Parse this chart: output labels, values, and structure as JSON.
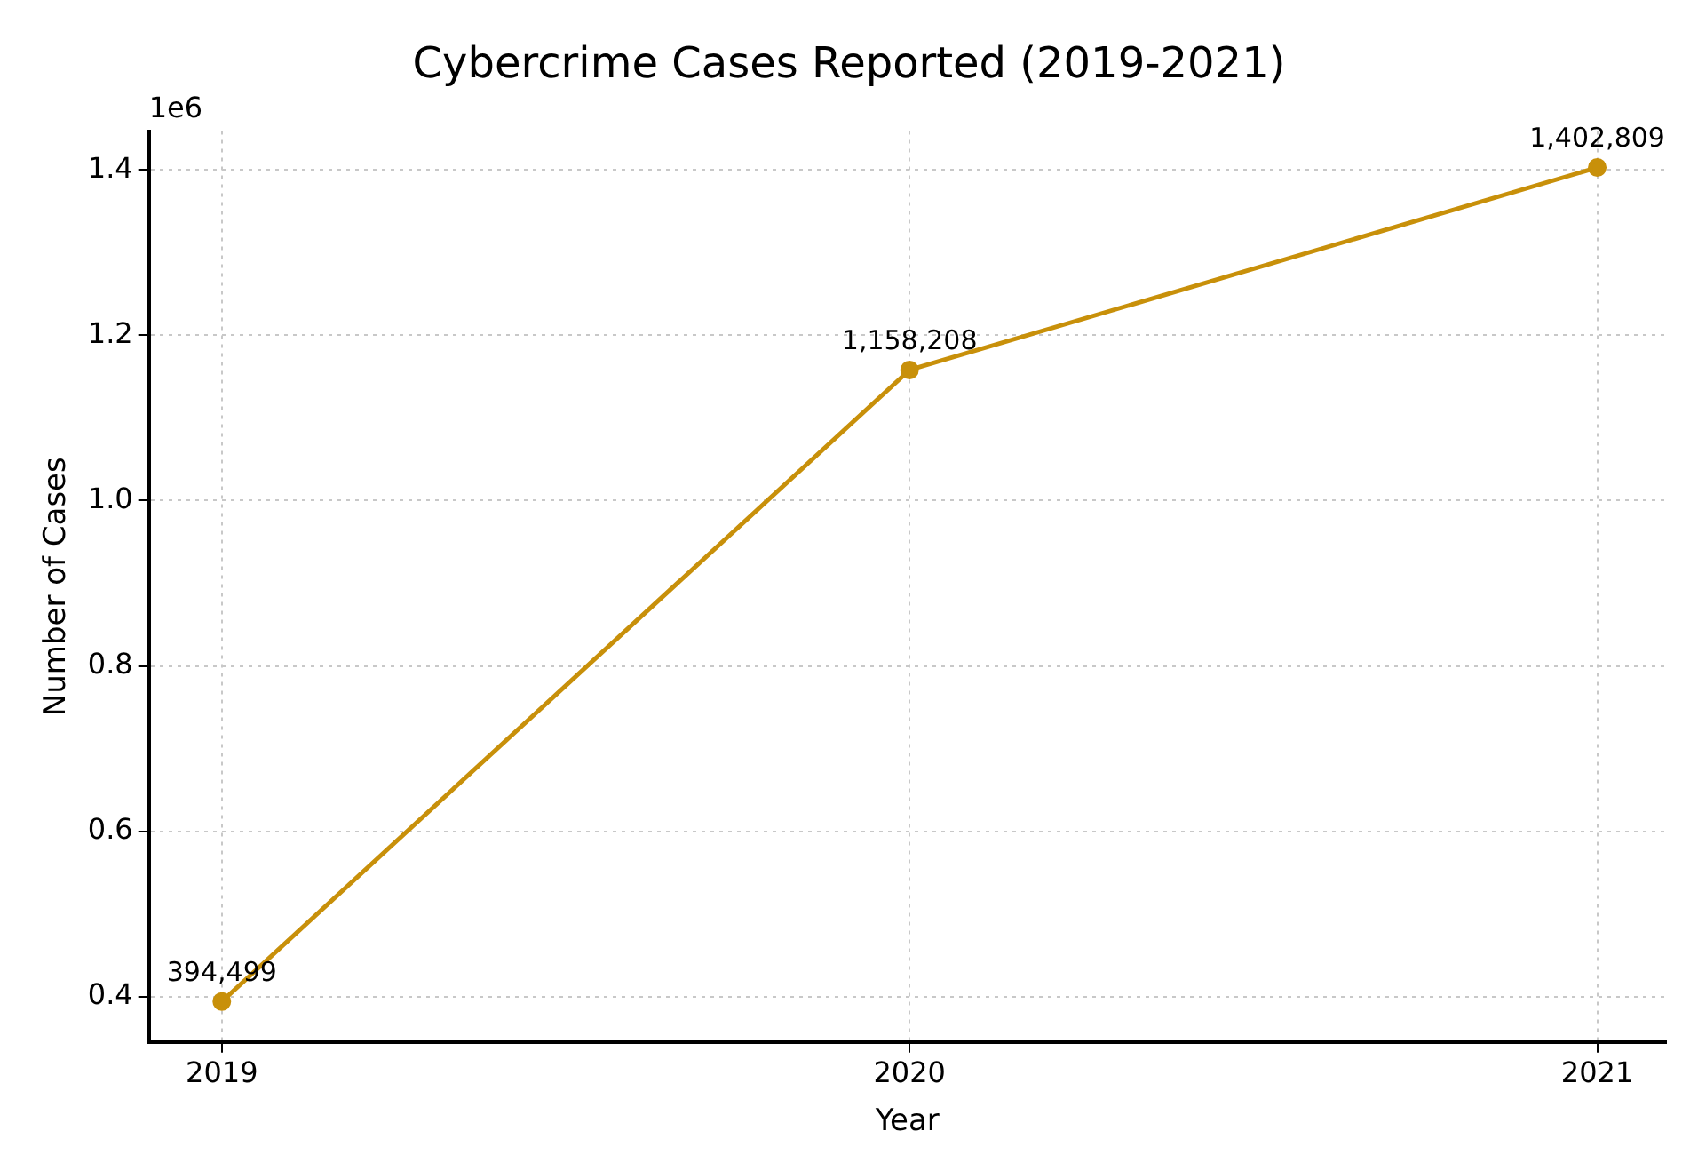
{
  "chart_data": {
    "type": "line",
    "title": "Cybercrime Cases Reported (2019-2021)",
    "xlabel": "Year",
    "ylabel": "Number of Cases",
    "x": [
      2019,
      2020,
      2021
    ],
    "series": [
      {
        "color": "#c8900a",
        "values": [
          0.394,
          1.158,
          1.403
        ]
      }
    ],
    "xlim": [
      2018.894,
      2021.1
    ],
    "xticks": [
      2019,
      2020,
      2021
    ],
    "ylim": [
      0.345,
      1.447
    ],
    "yticks": [
      0.4,
      0.6,
      0.8,
      {
        "value": 1.0,
        "label": "1.0"
      },
      1.2,
      1.4
    ],
    "annotations": [
      "1e6",
      {
        "text": "394,499",
        "x": 2019,
        "y": 0.394
      },
      {
        "text": "1,158,208",
        "x": 2020,
        "y": 1.158
      },
      {
        "text": "1,402,809",
        "x": 2021,
        "y": 1.403
      }
    ],
    "grid": true,
    "marker": "circle",
    "line_style": "solid",
    "legend": false
  }
}
